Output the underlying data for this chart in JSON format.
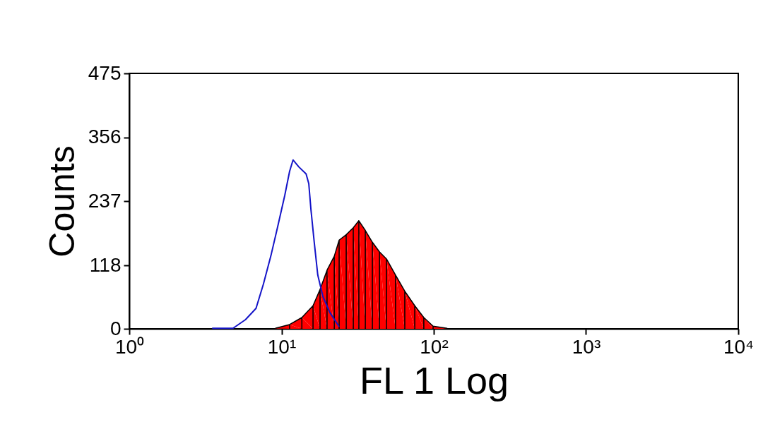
{
  "chart_data": {
    "type": "line",
    "xlabel": "FL 1 Log",
    "ylabel": "Counts",
    "log": "x",
    "xlim": [
      1,
      10000
    ],
    "xticks": [
      {
        "value": 1,
        "label": "10⁰"
      },
      {
        "value": 10,
        "label": "10¹"
      },
      {
        "value": 100,
        "label": "10²"
      },
      {
        "value": 1000,
        "label": "10³"
      },
      {
        "value": 10000,
        "label": "10⁴"
      }
    ],
    "ylim": [
      0,
      475
    ],
    "yticks": [
      0,
      118,
      237,
      356,
      475
    ],
    "grid": false,
    "series": [
      {
        "color": "#1414c8",
        "x": [
          3.5,
          4.8,
          5.8,
          6.8,
          7.6,
          8.5,
          9.4,
          10.5,
          11.3,
          11.9,
          13.0,
          14.5,
          15.1,
          15.6,
          16.4,
          17.3,
          18.7,
          20.8,
          23.9
        ],
        "values": [
          1,
          1,
          17,
          38,
          83,
          135,
          188,
          248,
          293,
          314,
          301,
          288,
          270,
          222,
          161,
          100,
          60,
          30,
          4
        ]
      },
      {
        "type": "area",
        "color": "#ff0000",
        "x": [
          9.1,
          11.3,
          13.6,
          16.1,
          17.9,
          19.9,
          22.2,
          23.9,
          26.6,
          29.6,
          32.2,
          35.5,
          39.5,
          44.0,
          48.9,
          56.1,
          64.5,
          75,
          86,
          99,
          122
        ],
        "values": [
          1,
          8,
          21,
          43,
          73,
          109,
          135,
          165,
          175,
          188,
          201,
          183,
          161,
          143,
          130,
          100,
          70,
          43,
          21,
          5,
          1
        ]
      }
    ]
  }
}
